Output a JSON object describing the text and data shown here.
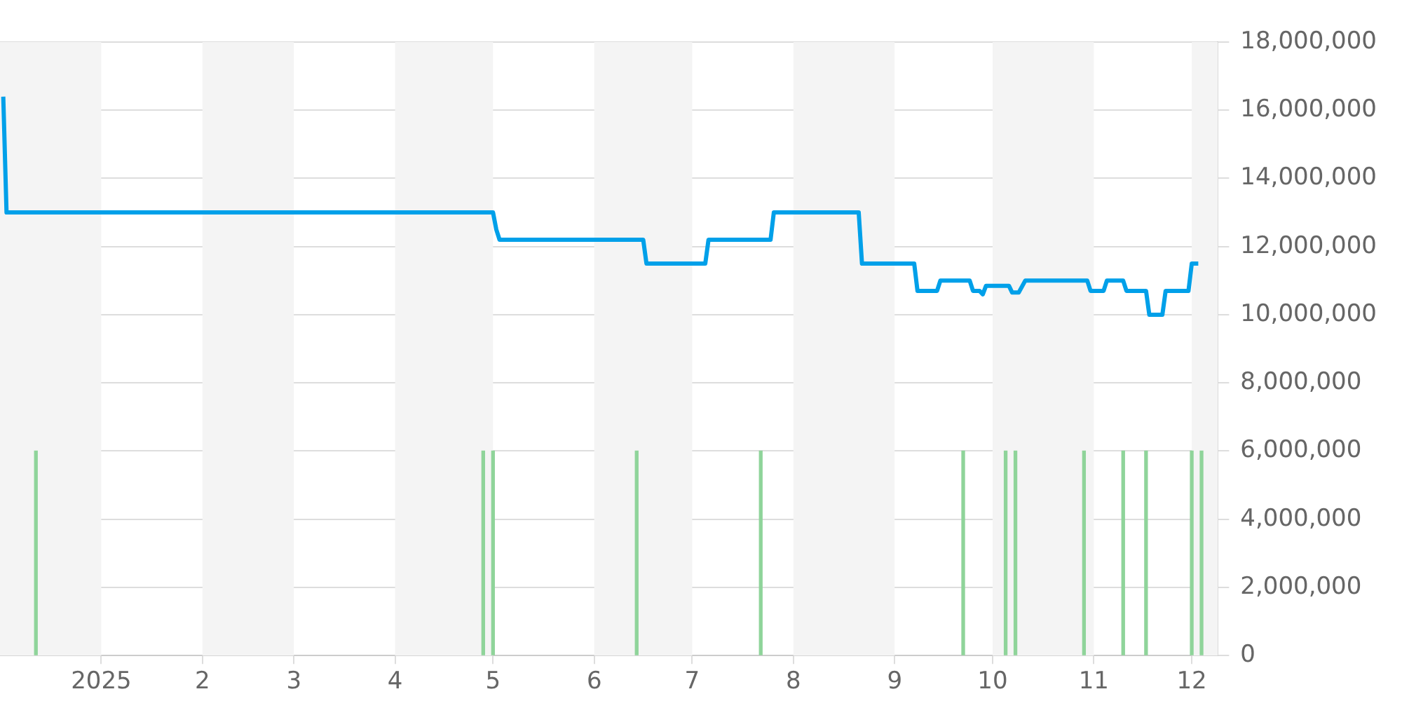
{
  "chart_data": {
    "type": "line",
    "xlim": [
      "2024-12-01",
      "2025-12-09"
    ],
    "xticks": [
      {
        "value": "2025-01-01",
        "label": "2025"
      },
      {
        "value": "2025-02-01",
        "label": "2"
      },
      {
        "value": "2025-03-01",
        "label": "3"
      },
      {
        "value": "2025-04-01",
        "label": "4"
      },
      {
        "value": "2025-05-01",
        "label": "5"
      },
      {
        "value": "2025-06-01",
        "label": "6"
      },
      {
        "value": "2025-07-01",
        "label": "7"
      },
      {
        "value": "2025-08-01",
        "label": "8"
      },
      {
        "value": "2025-09-01",
        "label": "9"
      },
      {
        "value": "2025-10-01",
        "label": "10"
      },
      {
        "value": "2025-11-01",
        "label": "11"
      },
      {
        "value": "2025-12-01",
        "label": "12"
      }
    ],
    "ylim": [
      0,
      18000000
    ],
    "yticks": [
      {
        "value": 0,
        "label": "0"
      },
      {
        "value": 2000000,
        "label": "2,000,000"
      },
      {
        "value": 4000000,
        "label": "4,000,000"
      },
      {
        "value": 6000000,
        "label": "6,000,000"
      },
      {
        "value": 8000000,
        "label": "8,000,000"
      },
      {
        "value": 10000000,
        "label": "10,000,000"
      },
      {
        "value": 12000000,
        "label": "12,000,000"
      },
      {
        "value": 14000000,
        "label": "14,000,000"
      },
      {
        "value": 16000000,
        "label": "16,000,000"
      },
      {
        "value": 18000000,
        "label": "18,000,000"
      }
    ],
    "grid": "y",
    "legend": false,
    "marker": "none",
    "line_style": "solid",
    "series": [
      {
        "color": "#00a0e9",
        "x": [
          "2024-12-02",
          "2024-12-03",
          "2025-05-01",
          "2025-05-02",
          "2025-05-03",
          "2025-06-16",
          "2025-06-17",
          "2025-07-05",
          "2025-07-06",
          "2025-07-25",
          "2025-07-26",
          "2025-08-21",
          "2025-08-22",
          "2025-09-07",
          "2025-09-08",
          "2025-09-14",
          "2025-09-15",
          "2025-09-24",
          "2025-09-25",
          "2025-09-27",
          "2025-09-28",
          "2025-09-29",
          "2025-10-06",
          "2025-10-07",
          "2025-10-09",
          "2025-10-11",
          "2025-10-30",
          "2025-10-31",
          "2025-11-04",
          "2025-11-05",
          "2025-11-10",
          "2025-11-11",
          "2025-11-17",
          "2025-11-18",
          "2025-11-22",
          "2025-11-23",
          "2025-11-30",
          "2025-12-01",
          "2025-12-03"
        ],
        "values": [
          16400000,
          13000000,
          13000000,
          12500000,
          12200000,
          12200000,
          11500000,
          11500000,
          12200000,
          12200000,
          13000000,
          13000000,
          11500000,
          11500000,
          10700000,
          10700000,
          11000000,
          11000000,
          10700000,
          10700000,
          10600000,
          10850000,
          10850000,
          10650000,
          10650000,
          11000000,
          11000000,
          10700000,
          10700000,
          11000000,
          11000000,
          10700000,
          10700000,
          10000000,
          10000000,
          10700000,
          10700000,
          11500000,
          11500000
        ]
      },
      {
        "type": "bar",
        "color": "#8fd49a",
        "x": [
          "2024-12-12",
          "2025-04-28",
          "2025-05-01",
          "2025-06-14",
          "2025-07-22",
          "2025-09-22",
          "2025-10-05",
          "2025-10-08",
          "2025-10-29",
          "2025-11-10",
          "2025-11-17",
          "2025-12-01",
          "2025-12-04"
        ],
        "values": [
          6000000,
          6000000,
          6000000,
          6000000,
          6000000,
          6000000,
          6000000,
          6000000,
          6000000,
          6000000,
          6000000,
          6000000,
          6000000
        ]
      }
    ],
    "bands": [
      {
        "axis": "x",
        "from": "2024-12-01",
        "to": "2025-01-01",
        "color": "#f4f4f4"
      },
      {
        "axis": "x",
        "from": "2025-02-01",
        "to": "2025-03-01",
        "color": "#f4f4f4"
      },
      {
        "axis": "x",
        "from": "2025-04-01",
        "to": "2025-05-01",
        "color": "#f4f4f4"
      },
      {
        "axis": "x",
        "from": "2025-06-01",
        "to": "2025-07-01",
        "color": "#f4f4f4"
      },
      {
        "axis": "x",
        "from": "2025-08-01",
        "to": "2025-09-01",
        "color": "#f4f4f4"
      },
      {
        "axis": "x",
        "from": "2025-10-01",
        "to": "2025-11-01",
        "color": "#f4f4f4"
      },
      {
        "axis": "x",
        "from": "2025-12-01",
        "to": "2025-12-09",
        "color": "#f4f4f4"
      }
    ]
  }
}
